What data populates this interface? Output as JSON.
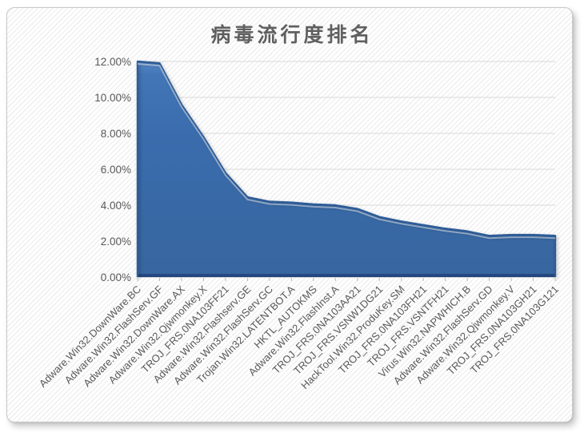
{
  "chart_data": {
    "type": "area",
    "title": "病毒流行度排名",
    "xlabel": "",
    "ylabel": "",
    "unit": "percent",
    "ylim": [
      0,
      12
    ],
    "y_tick_step": 2,
    "y_tick_labels": [
      "0.00%",
      "2.00%",
      "4.00%",
      "6.00%",
      "8.00%",
      "10.00%",
      "12.00%"
    ],
    "grid": true,
    "legend": false,
    "categories": [
      "Adware.Win32.DownWare.BC",
      "Adware.Win32.FlashServ.GF",
      "Adware.Win32.DownWare.AX",
      "Adware.Win32.Qjwmonkey.X",
      "TROJ_FRS.0NA103FF21",
      "Adware.Win32.Flashserv.GE",
      "Adware.Win32.FlashServ.GC",
      "Trojan.Win32.LATENTBOT.A",
      "HKTL_AUTOKMS",
      "Adware.Win32.FlashInst.A",
      "TROJ_FRS.0NA103AA21",
      "TROJ_FRS.VSNW1DG21",
      "HackTool.Win32.ProduKey.SM",
      "TROJ_FRS.0NA103FH21",
      "TROJ_FRS.VSNTFH21",
      "Virus.Win32.NAPWHICH.B",
      "Adware.Win32.FlashServ.GD",
      "Adware.Win32.Qjwmonkey.V",
      "TROJ_FRS.0NA103GH21",
      "TROJ_FRS.0NA103G121"
    ],
    "values": [
      12.0,
      11.9,
      9.6,
      7.8,
      5.8,
      4.45,
      4.2,
      4.15,
      4.05,
      4.0,
      3.8,
      3.35,
      3.1,
      2.9,
      2.7,
      2.55,
      2.3,
      2.35,
      2.35,
      2.3
    ]
  },
  "colors": {
    "area_fill_top": "#5587c6",
    "area_fill_upper": "#4376b7",
    "area_fill_mid": "#3a6cad",
    "area_fill_bottom": "#37669f",
    "area_edge": "#2d5c97",
    "area_bottom_band": "#24477f",
    "area_highlight": "rgba(255,255,255,0.45)",
    "gridline": "#d9d9d9",
    "axis_line": "#bfbfbf",
    "tick_mark": "#b7b7b7",
    "label_text": "#595959",
    "title_text": "#606060"
  }
}
